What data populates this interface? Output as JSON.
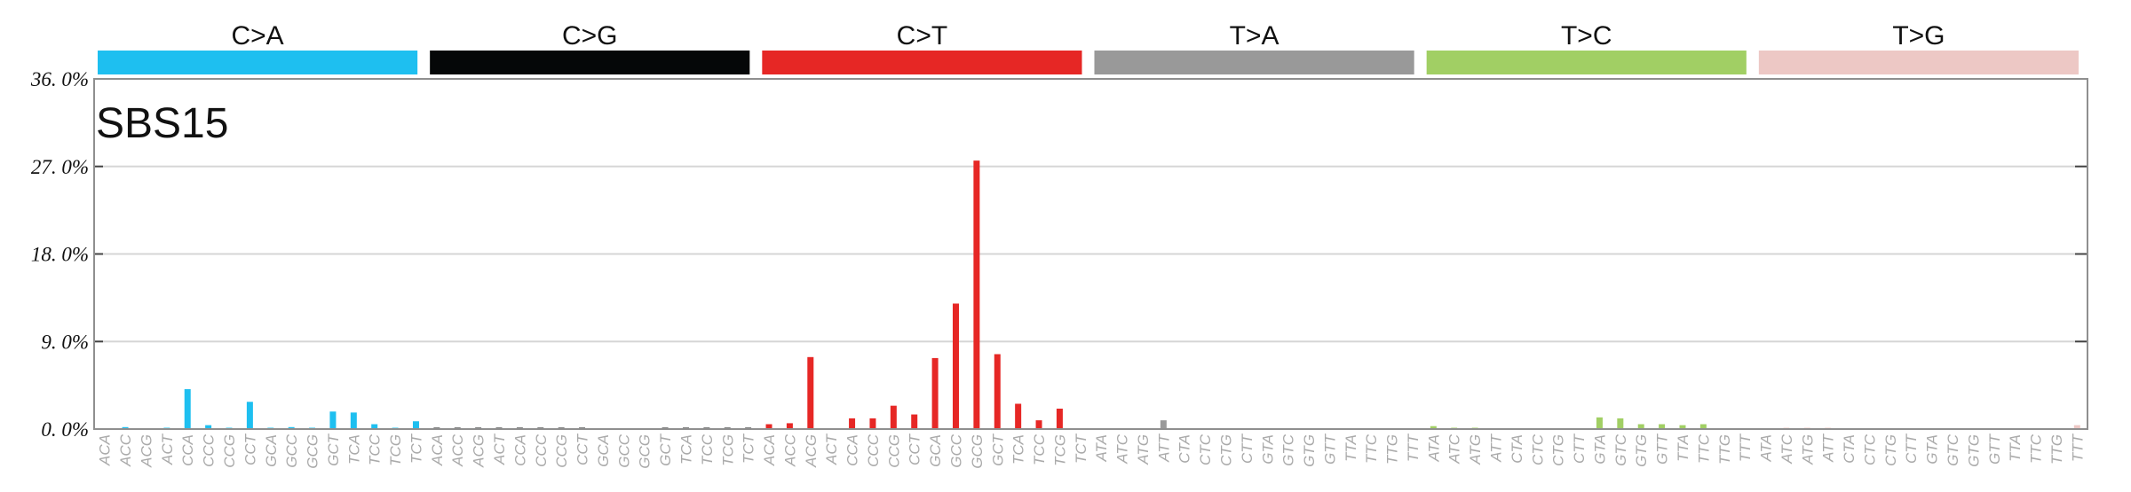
{
  "chart_data": {
    "type": "bar",
    "title": "SBS15",
    "ylim": [
      0,
      36
    ],
    "yticks": [
      0,
      9,
      18,
      27,
      36
    ],
    "ytick_labels": [
      "0. 0%",
      "9. 0%",
      "18. 0%",
      "27. 0%",
      "36. 0%"
    ],
    "grid": true,
    "groups": [
      {
        "name": "C>A",
        "color": "#1ebff0"
      },
      {
        "name": "C>G",
        "color": "#050708"
      },
      {
        "name": "C>T",
        "color": "#e62725"
      },
      {
        "name": "T>A",
        "color": "#999999"
      },
      {
        "name": "T>C",
        "color": "#a1cf64"
      },
      {
        "name": "T>G",
        "color": "#edc8c5"
      }
    ],
    "contexts_C": [
      "ACA",
      "ACC",
      "ACG",
      "ACT",
      "CCA",
      "CCC",
      "CCG",
      "CCT",
      "GCA",
      "GCC",
      "GCG",
      "GCT",
      "TCA",
      "TCC",
      "TCG",
      "TCT"
    ],
    "contexts_T": [
      "ATA",
      "ATC",
      "ATG",
      "ATT",
      "CTA",
      "CTC",
      "CTG",
      "CTT",
      "GTA",
      "GTC",
      "GTG",
      "GTT",
      "TTA",
      "TTC",
      "TTG",
      "TTT"
    ],
    "series": [
      {
        "group": "C>A",
        "values": [
          0.0,
          0.2,
          0.0,
          0.1,
          4.1,
          0.4,
          0.1,
          2.8,
          0.1,
          0.2,
          0.1,
          1.8,
          1.7,
          0.5,
          0.1,
          0.8
        ]
      },
      {
        "group": "C>G",
        "values": [
          0.1,
          0.1,
          0.1,
          0.1,
          0.1,
          0.1,
          0.1,
          0.1,
          0.0,
          0.0,
          0.0,
          0.1,
          0.1,
          0.1,
          0.1,
          0.1
        ]
      },
      {
        "group": "C>T",
        "values": [
          0.5,
          0.6,
          7.4,
          0.0,
          1.1,
          1.1,
          2.4,
          1.5,
          7.3,
          12.9,
          27.6,
          7.7,
          2.6,
          0.9,
          2.1,
          0.0
        ]
      },
      {
        "group": "T>A",
        "values": [
          0.0,
          0.0,
          0.0,
          0.9,
          0.0,
          0.0,
          0.0,
          0.0,
          0.0,
          0.0,
          0.0,
          0.0,
          0.0,
          0.0,
          0.0,
          0.0
        ]
      },
      {
        "group": "T>C",
        "values": [
          0.3,
          0.1,
          0.1,
          0.0,
          0.0,
          0.0,
          0.0,
          0.0,
          1.2,
          1.1,
          0.5,
          0.5,
          0.4,
          0.5,
          0.0,
          0.0
        ]
      },
      {
        "group": "T>G",
        "values": [
          0.0,
          0.1,
          0.1,
          0.1,
          0.0,
          0.0,
          0.0,
          0.0,
          0.0,
          0.0,
          0.0,
          0.0,
          0.0,
          0.0,
          0.0,
          0.4
        ]
      }
    ]
  }
}
